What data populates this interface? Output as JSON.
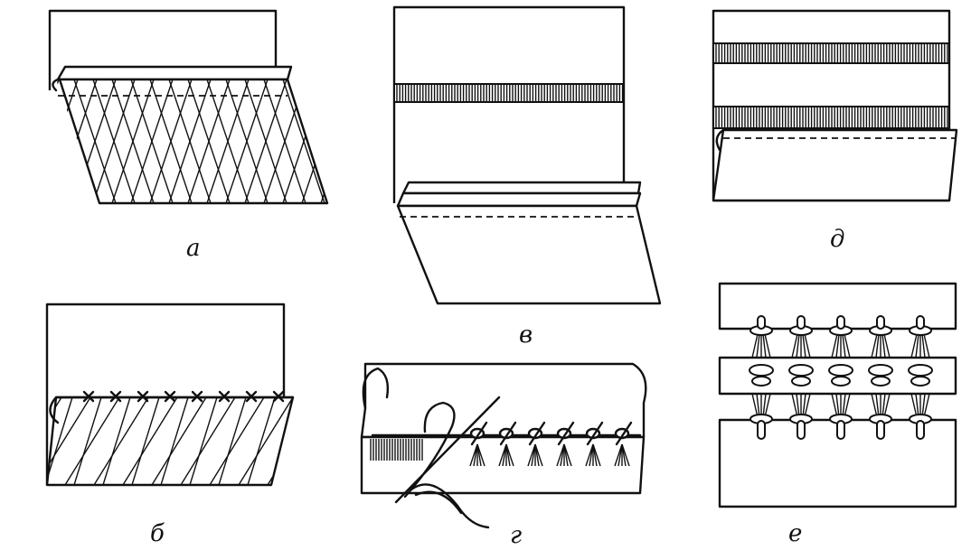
{
  "figures": [
    {
      "id": "a",
      "label": "а"
    },
    {
      "id": "b",
      "label": "б"
    },
    {
      "id": "v",
      "label": "в"
    },
    {
      "id": "g",
      "label": "г"
    },
    {
      "id": "d",
      "label": "д"
    },
    {
      "id": "e",
      "label": "е"
    }
  ]
}
